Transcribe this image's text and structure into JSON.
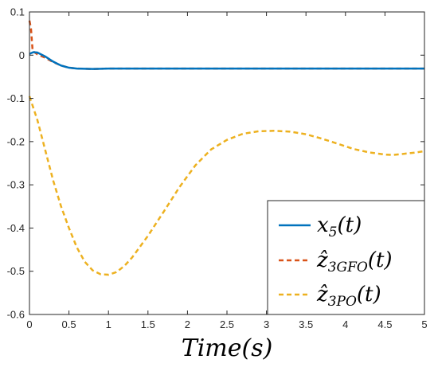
{
  "chart_data": {
    "type": "line",
    "title": "",
    "xlabel": "Time(s)",
    "ylabel": "",
    "xlim": [
      0,
      5
    ],
    "ylim": [
      -0.6,
      0.1
    ],
    "x_ticks": [
      "0",
      "0.5",
      "1",
      "1.5",
      "2",
      "2.5",
      "3",
      "3.5",
      "4",
      "4.5",
      "5"
    ],
    "y_ticks": [
      "0.1",
      "0",
      "-0.1",
      "-0.2",
      "-0.3",
      "-0.4",
      "-0.5",
      "-0.6"
    ],
    "grid": false,
    "legend_position": "bottom-right",
    "series": [
      {
        "name": "x5(t)",
        "color": "#0072BD",
        "style": "solid",
        "points": [
          [
            0,
            0.003
          ],
          [
            0.05,
            0.007
          ],
          [
            0.1,
            0.006
          ],
          [
            0.2,
            -0.003
          ],
          [
            0.3,
            -0.015
          ],
          [
            0.4,
            -0.024
          ],
          [
            0.5,
            -0.029
          ],
          [
            0.6,
            -0.031
          ],
          [
            0.8,
            -0.032
          ],
          [
            1.0,
            -0.031
          ],
          [
            1.5,
            -0.031
          ],
          [
            2,
            -0.031
          ],
          [
            3,
            -0.031
          ],
          [
            4,
            -0.031
          ],
          [
            5,
            -0.031
          ]
        ]
      },
      {
        "name": "ẑ3GFO(t)",
        "color": "#D95319",
        "style": "dashed",
        "points": [
          [
            0,
            0.08
          ],
          [
            0.02,
            0.06
          ],
          [
            0.04,
            0.01
          ],
          [
            0.06,
            0.007
          ],
          [
            0.1,
            0.002
          ],
          [
            0.2,
            -0.006
          ],
          [
            0.3,
            -0.016
          ],
          [
            0.4,
            -0.024
          ],
          [
            0.5,
            -0.029
          ],
          [
            0.6,
            -0.031
          ],
          [
            0.8,
            -0.032
          ],
          [
            1.0,
            -0.031
          ],
          [
            1.5,
            -0.031
          ],
          [
            2,
            -0.031
          ],
          [
            3,
            -0.031
          ],
          [
            4,
            -0.031
          ],
          [
            5,
            -0.031
          ]
        ]
      },
      {
        "name": "ẑ3PO(t)",
        "color": "#EDB120",
        "style": "dashed",
        "points": [
          [
            0,
            -0.095
          ],
          [
            0.1,
            -0.15
          ],
          [
            0.2,
            -0.22
          ],
          [
            0.3,
            -0.29
          ],
          [
            0.4,
            -0.35
          ],
          [
            0.5,
            -0.4
          ],
          [
            0.6,
            -0.445
          ],
          [
            0.7,
            -0.478
          ],
          [
            0.8,
            -0.498
          ],
          [
            0.9,
            -0.507
          ],
          [
            1.0,
            -0.508
          ],
          [
            1.1,
            -0.502
          ],
          [
            1.2,
            -0.488
          ],
          [
            1.3,
            -0.468
          ],
          [
            1.5,
            -0.418
          ],
          [
            1.7,
            -0.362
          ],
          [
            1.9,
            -0.305
          ],
          [
            2.1,
            -0.255
          ],
          [
            2.3,
            -0.218
          ],
          [
            2.5,
            -0.196
          ],
          [
            2.7,
            -0.182
          ],
          [
            2.9,
            -0.176
          ],
          [
            3.1,
            -0.175
          ],
          [
            3.3,
            -0.177
          ],
          [
            3.5,
            -0.183
          ],
          [
            3.7,
            -0.193
          ],
          [
            3.9,
            -0.205
          ],
          [
            4.1,
            -0.217
          ],
          [
            4.3,
            -0.225
          ],
          [
            4.5,
            -0.23
          ],
          [
            4.6,
            -0.231
          ],
          [
            4.7,
            -0.229
          ],
          [
            4.8,
            -0.227
          ],
          [
            4.9,
            -0.225
          ],
          [
            5,
            -0.222
          ]
        ]
      }
    ]
  }
}
